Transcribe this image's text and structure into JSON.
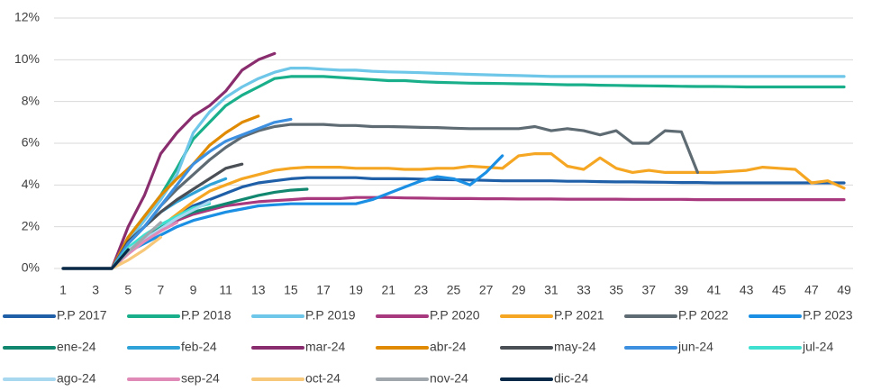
{
  "chart_data": {
    "type": "line",
    "x": [
      1,
      2,
      3,
      4,
      5,
      6,
      7,
      8,
      9,
      10,
      11,
      12,
      13,
      14,
      15,
      16,
      17,
      18,
      19,
      20,
      21,
      22,
      23,
      24,
      25,
      26,
      27,
      28,
      29,
      30,
      31,
      32,
      33,
      34,
      35,
      36,
      37,
      38,
      39,
      40,
      41,
      42,
      43,
      44,
      45,
      46,
      47,
      48,
      49
    ],
    "xlim": [
      1,
      49
    ],
    "xticks": [
      1,
      3,
      5,
      7,
      9,
      11,
      13,
      15,
      17,
      19,
      21,
      23,
      25,
      27,
      29,
      31,
      33,
      35,
      37,
      39,
      41,
      43,
      45,
      47,
      49
    ],
    "ylim": [
      0,
      12
    ],
    "yticks": [
      {
        "value": 0,
        "label": "0%"
      },
      {
        "value": 2,
        "label": "2%"
      },
      {
        "value": 4,
        "label": "4%"
      },
      {
        "value": 6,
        "label": "6%"
      },
      {
        "value": 8,
        "label": "8%"
      },
      {
        "value": 10,
        "label": "10%"
      },
      {
        "value": 12,
        "label": "12%"
      }
    ],
    "grid": true,
    "legend": "bottom",
    "series": [
      {
        "name": "P.P 2017",
        "color": "#1f5fa8",
        "values": [
          0,
          0,
          0,
          0,
          1.0,
          1.5,
          2.0,
          2.5,
          3.0,
          3.3,
          3.6,
          3.9,
          4.1,
          4.2,
          4.3,
          4.35,
          4.35,
          4.35,
          4.35,
          4.3,
          4.3,
          4.3,
          4.28,
          4.26,
          4.25,
          4.24,
          4.22,
          4.2,
          4.2,
          4.2,
          4.2,
          4.18,
          4.18,
          4.16,
          4.15,
          4.15,
          4.14,
          4.13,
          4.12,
          4.12,
          4.1,
          4.1,
          4.1,
          4.1,
          4.1,
          4.1,
          4.1,
          4.1,
          4.1
        ]
      },
      {
        "name": "P.P 2018",
        "color": "#1aaf8b",
        "values": [
          0,
          0,
          0,
          0,
          1.5,
          2.5,
          3.5,
          4.8,
          6.2,
          7.0,
          7.8,
          8.3,
          8.7,
          9.1,
          9.2,
          9.2,
          9.2,
          9.15,
          9.1,
          9.05,
          9.0,
          9.0,
          8.95,
          8.92,
          8.9,
          8.88,
          8.87,
          8.86,
          8.85,
          8.84,
          8.82,
          8.8,
          8.8,
          8.78,
          8.77,
          8.76,
          8.75,
          8.74,
          8.73,
          8.72,
          8.72,
          8.71,
          8.7,
          8.7,
          8.7,
          8.7,
          8.7,
          8.7,
          8.7
        ]
      },
      {
        "name": "P.P 2019",
        "color": "#6ec6e8",
        "values": [
          0,
          0,
          0,
          0,
          1.3,
          2.3,
          3.3,
          4.5,
          6.5,
          7.5,
          8.2,
          8.7,
          9.1,
          9.4,
          9.6,
          9.6,
          9.55,
          9.5,
          9.5,
          9.45,
          9.42,
          9.4,
          9.38,
          9.35,
          9.33,
          9.3,
          9.28,
          9.26,
          9.24,
          9.22,
          9.2,
          9.2,
          9.2,
          9.2,
          9.2,
          9.2,
          9.2,
          9.2,
          9.2,
          9.2,
          9.2,
          9.2,
          9.2,
          9.2,
          9.2,
          9.2,
          9.2,
          9.2,
          9.2
        ]
      },
      {
        "name": "P.P 2020",
        "color": "#a8397f",
        "values": [
          0,
          0,
          0,
          0,
          0.8,
          1.3,
          1.8,
          2.3,
          2.6,
          2.8,
          3.0,
          3.1,
          3.2,
          3.25,
          3.3,
          3.35,
          3.35,
          3.35,
          3.4,
          3.4,
          3.4,
          3.38,
          3.37,
          3.36,
          3.35,
          3.35,
          3.34,
          3.34,
          3.33,
          3.33,
          3.33,
          3.32,
          3.32,
          3.32,
          3.32,
          3.31,
          3.31,
          3.31,
          3.31,
          3.3,
          3.3,
          3.3,
          3.3,
          3.3,
          3.3,
          3.3,
          3.3,
          3.3,
          3.3
        ]
      },
      {
        "name": "P.P 2021",
        "color": "#f5a623",
        "values": [
          0,
          0,
          0,
          0,
          0.9,
          1.5,
          2.0,
          2.6,
          3.2,
          3.7,
          4.0,
          4.3,
          4.5,
          4.7,
          4.8,
          4.85,
          4.85,
          4.85,
          4.8,
          4.8,
          4.8,
          4.75,
          4.75,
          4.8,
          4.8,
          4.9,
          4.85,
          4.8,
          5.4,
          5.5,
          5.5,
          4.9,
          4.75,
          5.3,
          4.8,
          4.6,
          4.7,
          4.6,
          4.6,
          4.6,
          4.6,
          4.65,
          4.7,
          4.85,
          4.8,
          4.75,
          4.1,
          4.2,
          3.85
        ]
      },
      {
        "name": "P.P 2022",
        "color": "#5f6b73",
        "values": [
          0,
          0,
          0,
          0,
          1.2,
          2.0,
          3.0,
          3.8,
          4.5,
          5.2,
          5.8,
          6.3,
          6.6,
          6.8,
          6.9,
          6.9,
          6.9,
          6.85,
          6.85,
          6.8,
          6.8,
          6.78,
          6.76,
          6.75,
          6.72,
          6.7,
          6.7,
          6.7,
          6.7,
          6.8,
          6.6,
          6.7,
          6.6,
          6.4,
          6.6,
          6.0,
          6.0,
          6.6,
          6.55,
          4.6,
          null,
          null,
          null,
          null,
          null,
          null,
          null,
          null,
          null
        ]
      },
      {
        "name": "P.P 2023",
        "color": "#1a8fe3",
        "values": [
          0,
          0,
          0,
          0,
          0.8,
          1.2,
          1.6,
          2.0,
          2.3,
          2.5,
          2.7,
          2.85,
          3.0,
          3.05,
          3.1,
          3.1,
          3.1,
          3.1,
          3.1,
          3.3,
          3.6,
          3.9,
          4.2,
          4.4,
          4.3,
          4.0,
          4.6,
          5.4,
          null,
          null,
          null,
          null,
          null,
          null,
          null,
          null,
          null,
          null,
          null,
          null,
          null,
          null,
          null,
          null,
          null,
          null,
          null,
          null,
          null
        ]
      },
      {
        "name": "ene-24",
        "color": "#12876f",
        "values": [
          0,
          0,
          0,
          0,
          1.0,
          1.5,
          2.0,
          2.4,
          2.7,
          2.9,
          3.1,
          3.3,
          3.5,
          3.65,
          3.75,
          3.8,
          null,
          null,
          null,
          null,
          null,
          null,
          null,
          null,
          null,
          null,
          null,
          null,
          null,
          null,
          null,
          null,
          null,
          null,
          null,
          null,
          null,
          null,
          null,
          null,
          null,
          null,
          null,
          null,
          null,
          null,
          null,
          null,
          null
        ]
      },
      {
        "name": "feb-24",
        "color": "#2fa3d8",
        "values": [
          0,
          0,
          0,
          0,
          1.2,
          2.0,
          2.7,
          3.2,
          3.6,
          4.0,
          4.3,
          null,
          null,
          null,
          null,
          null,
          null,
          null,
          null,
          null,
          null,
          null,
          null,
          null,
          null,
          null,
          null,
          null,
          null,
          null,
          null,
          null,
          null,
          null,
          null,
          null,
          null,
          null,
          null,
          null,
          null,
          null,
          null,
          null,
          null,
          null,
          null,
          null,
          null
        ]
      },
      {
        "name": "mar-24",
        "color": "#8a2d6f",
        "values": [
          0,
          0,
          0,
          0,
          2.0,
          3.5,
          5.5,
          6.5,
          7.3,
          7.8,
          8.5,
          9.5,
          10.0,
          10.3,
          null,
          null,
          null,
          null,
          null,
          null,
          null,
          null,
          null,
          null,
          null,
          null,
          null,
          null,
          null,
          null,
          null,
          null,
          null,
          null,
          null,
          null,
          null,
          null,
          null,
          null,
          null,
          null,
          null,
          null,
          null,
          null,
          null,
          null,
          null
        ]
      },
      {
        "name": "abr-24",
        "color": "#e08a00",
        "values": [
          0,
          0,
          0,
          0,
          1.5,
          2.5,
          3.5,
          4.3,
          5.0,
          5.9,
          6.5,
          7.0,
          7.3,
          null,
          null,
          null,
          null,
          null,
          null,
          null,
          null,
          null,
          null,
          null,
          null,
          null,
          null,
          null,
          null,
          null,
          null,
          null,
          null,
          null,
          null,
          null,
          null,
          null,
          null,
          null,
          null,
          null,
          null,
          null,
          null,
          null,
          null,
          null,
          null
        ]
      },
      {
        "name": "may-24",
        "color": "#4a4f55",
        "values": [
          0,
          0,
          0,
          0,
          1.3,
          2.0,
          2.7,
          3.3,
          3.8,
          4.3,
          4.8,
          5.0,
          null,
          null,
          null,
          null,
          null,
          null,
          null,
          null,
          null,
          null,
          null,
          null,
          null,
          null,
          null,
          null,
          null,
          null,
          null,
          null,
          null,
          null,
          null,
          null,
          null,
          null,
          null,
          null,
          null,
          null,
          null,
          null,
          null,
          null,
          null,
          null,
          null
        ]
      },
      {
        "name": "jun-24",
        "color": "#3d8fe0",
        "values": [
          0,
          0,
          0,
          0,
          1.2,
          2.0,
          3.0,
          4.0,
          5.0,
          5.6,
          6.1,
          6.4,
          6.7,
          7.0,
          7.15,
          null,
          null,
          null,
          null,
          null,
          null,
          null,
          null,
          null,
          null,
          null,
          null,
          null,
          null,
          null,
          null,
          null,
          null,
          null,
          null,
          null,
          null,
          null,
          null,
          null,
          null,
          null,
          null,
          null,
          null,
          null,
          null,
          null,
          null
        ]
      },
      {
        "name": "jul-24",
        "color": "#3fe0d0",
        "values": [
          0,
          0,
          0,
          0,
          1.0,
          1.6,
          2.1,
          2.5,
          2.9,
          3.1,
          null,
          null,
          null,
          null,
          null,
          null,
          null,
          null,
          null,
          null,
          null,
          null,
          null,
          null,
          null,
          null,
          null,
          null,
          null,
          null,
          null,
          null,
          null,
          null,
          null,
          null,
          null,
          null,
          null,
          null,
          null,
          null,
          null,
          null,
          null,
          null,
          null,
          null,
          null
        ]
      },
      {
        "name": "ago-24",
        "color": "#a8d8f0",
        "values": [
          0,
          0,
          0,
          0,
          0.9,
          1.4,
          1.9,
          2.4,
          2.8,
          3.2,
          null,
          null,
          null,
          null,
          null,
          null,
          null,
          null,
          null,
          null,
          null,
          null,
          null,
          null,
          null,
          null,
          null,
          null,
          null,
          null,
          null,
          null,
          null,
          null,
          null,
          null,
          null,
          null,
          null,
          null,
          null,
          null,
          null,
          null,
          null,
          null,
          null,
          null,
          null
        ]
      },
      {
        "name": "sep-24",
        "color": "#e08ab8",
        "values": [
          0,
          0,
          0,
          0,
          0.7,
          1.3,
          1.8,
          2.2,
          null,
          null,
          null,
          null,
          null,
          null,
          null,
          null,
          null,
          null,
          null,
          null,
          null,
          null,
          null,
          null,
          null,
          null,
          null,
          null,
          null,
          null,
          null,
          null,
          null,
          null,
          null,
          null,
          null,
          null,
          null,
          null,
          null,
          null,
          null,
          null,
          null,
          null,
          null,
          null,
          null
        ]
      },
      {
        "name": "oct-24",
        "color": "#f8c87a",
        "values": [
          0,
          0,
          0,
          0,
          0.4,
          0.9,
          1.5,
          null,
          null,
          null,
          null,
          null,
          null,
          null,
          null,
          null,
          null,
          null,
          null,
          null,
          null,
          null,
          null,
          null,
          null,
          null,
          null,
          null,
          null,
          null,
          null,
          null,
          null,
          null,
          null,
          null,
          null,
          null,
          null,
          null,
          null,
          null,
          null,
          null,
          null,
          null,
          null,
          null,
          null
        ]
      },
      {
        "name": "nov-24",
        "color": "#a0a8ae",
        "values": [
          0,
          0,
          0,
          0,
          0.8,
          1.5,
          2.2,
          null,
          null,
          null,
          null,
          null,
          null,
          null,
          null,
          null,
          null,
          null,
          null,
          null,
          null,
          null,
          null,
          null,
          null,
          null,
          null,
          null,
          null,
          null,
          null,
          null,
          null,
          null,
          null,
          null,
          null,
          null,
          null,
          null,
          null,
          null,
          null,
          null,
          null,
          null,
          null,
          null,
          null
        ]
      },
      {
        "name": "dic-24",
        "color": "#0a2a4a",
        "values": [
          0,
          0,
          0,
          0,
          0.9,
          null,
          null,
          null,
          null,
          null,
          null,
          null,
          null,
          null,
          null,
          null,
          null,
          null,
          null,
          null,
          null,
          null,
          null,
          null,
          null,
          null,
          null,
          null,
          null,
          null,
          null,
          null,
          null,
          null,
          null,
          null,
          null,
          null,
          null,
          null,
          null,
          null,
          null,
          null,
          null,
          null,
          null,
          null,
          null
        ]
      }
    ]
  }
}
